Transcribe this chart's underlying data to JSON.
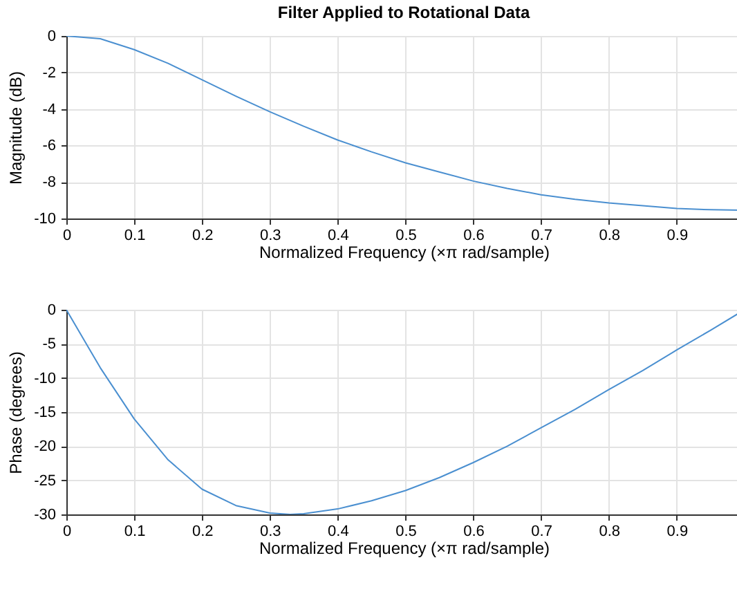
{
  "chart_data": [
    {
      "type": "line",
      "title": "Filter Applied to Rotational Data",
      "xlabel": "Normalized  Frequency    (×π  rad/sample)",
      "ylabel": "Magnitude (dB)",
      "x": [
        0,
        0.05,
        0.1,
        0.15,
        0.2,
        0.25,
        0.3,
        0.35,
        0.4,
        0.45,
        0.5,
        0.55,
        0.6,
        0.65,
        0.7,
        0.75,
        0.8,
        0.85,
        0.9,
        0.95,
        0.995
      ],
      "series": [
        {
          "color": "#4a8fd0",
          "values": [
            0,
            -0.15,
            -0.75,
            -1.5,
            -2.4,
            -3.3,
            -4.15,
            -4.95,
            -5.7,
            -6.35,
            -6.95,
            -7.45,
            -7.95,
            -8.35,
            -8.7,
            -8.95,
            -9.15,
            -9.3,
            -9.45,
            -9.52,
            -9.55
          ]
        }
      ],
      "xlim": [
        0,
        0.995
      ],
      "xticks": [
        0,
        0.1,
        0.2,
        0.3,
        0.4,
        0.5,
        0.6,
        0.7,
        0.8,
        0.9
      ],
      "ylim": [
        -10,
        0
      ],
      "yticks": [
        -10,
        -8,
        -6,
        -4,
        -2,
        0
      ],
      "grid": true
    },
    {
      "type": "line",
      "xlabel": "Normalized  Frequency    (×π  rad/sample)",
      "ylabel": "Phase (degrees)",
      "x": [
        0,
        0.05,
        0.1,
        0.15,
        0.2,
        0.25,
        0.3,
        0.33,
        0.35,
        0.4,
        0.45,
        0.5,
        0.55,
        0.6,
        0.65,
        0.7,
        0.75,
        0.8,
        0.85,
        0.9,
        0.95,
        0.995
      ],
      "series": [
        {
          "color": "#4a8fd0",
          "values": [
            0,
            -8.5,
            -16,
            -22,
            -26.3,
            -28.7,
            -29.8,
            -30,
            -29.9,
            -29.2,
            -28,
            -26.5,
            -24.6,
            -22.4,
            -20,
            -17.3,
            -14.6,
            -11.7,
            -8.9,
            -5.9,
            -3,
            -0.3
          ]
        }
      ],
      "xlim": [
        0,
        0.995
      ],
      "xticks": [
        0,
        0.1,
        0.2,
        0.3,
        0.4,
        0.5,
        0.6,
        0.7,
        0.8,
        0.9
      ],
      "ylim": [
        -30,
        0
      ],
      "yticks": [
        -30,
        -25,
        -20,
        -15,
        -10,
        -5,
        0
      ],
      "grid": true
    }
  ]
}
